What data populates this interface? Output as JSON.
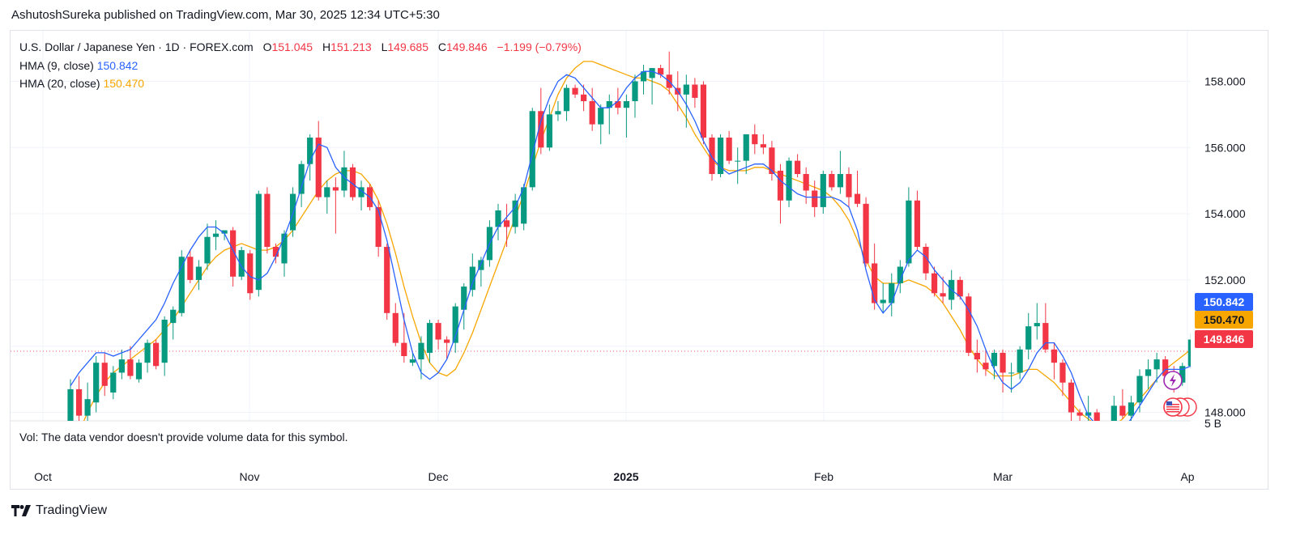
{
  "publisher_line": "AshutoshSureka published on TradingView.com, Mar 30, 2025 12:34 UTC+5:30",
  "legend": {
    "symbol": "U.S. Dollar / Japanese Yen · 1D · FOREX.com",
    "o_label": "O",
    "o_value": "151.045",
    "h_label": "H",
    "h_value": "151.213",
    "l_label": "L",
    "l_value": "149.685",
    "c_label": "C",
    "c_value": "149.846",
    "change": "−1.199 (−0.79%)",
    "hma9_label": "HMA (9, close)",
    "hma9_value": "150.842",
    "hma20_label": "HMA (20, close)",
    "hma20_value": "150.470"
  },
  "volume_note": "Vol: The data vendor doesn't provide volume data for this symbol.",
  "volume_axis_label": "5 B",
  "brand": "TradingView",
  "colors": {
    "up": "#089981",
    "down": "#f23645",
    "hma9": "#2962ff",
    "hma20": "#f7a600",
    "last_price": "#f23645"
  },
  "chart_data": {
    "type": "candlestick",
    "ylim": [
      147.4,
      159.0
    ],
    "y_ticks": [
      "158.000",
      "156.000",
      "154.000",
      "152.000",
      "148.000"
    ],
    "x_ticks": [
      "Oct",
      "Nov",
      "Dec",
      "2025",
      "Feb",
      "Mar",
      "Ap"
    ],
    "price_tags": [
      {
        "label": "150.842",
        "value": 150.842,
        "color": "#2962ff"
      },
      {
        "label": "150.470",
        "value": 150.47,
        "color": "#f7a600"
      },
      {
        "label": "149.846",
        "value": 149.846,
        "color": "#f23645"
      }
    ],
    "candles": [
      {
        "o": 146.5,
        "h": 149.0,
        "l": 146.2,
        "c": 148.7
      },
      {
        "o": 148.7,
        "h": 149.1,
        "l": 147.6,
        "c": 147.9
      },
      {
        "o": 147.9,
        "h": 148.9,
        "l": 147.5,
        "c": 148.4
      },
      {
        "o": 148.3,
        "h": 149.7,
        "l": 148.0,
        "c": 149.5
      },
      {
        "o": 149.5,
        "h": 149.8,
        "l": 148.5,
        "c": 148.8
      },
      {
        "o": 148.6,
        "h": 149.4,
        "l": 148.4,
        "c": 149.2
      },
      {
        "o": 149.2,
        "h": 149.9,
        "l": 149.0,
        "c": 149.6
      },
      {
        "o": 149.6,
        "h": 150.0,
        "l": 149.0,
        "c": 149.1
      },
      {
        "o": 149.0,
        "h": 149.6,
        "l": 148.9,
        "c": 149.5
      },
      {
        "o": 149.5,
        "h": 150.2,
        "l": 149.2,
        "c": 150.1
      },
      {
        "o": 150.1,
        "h": 150.2,
        "l": 149.3,
        "c": 149.4
      },
      {
        "o": 149.5,
        "h": 150.9,
        "l": 149.1,
        "c": 150.8
      },
      {
        "o": 150.7,
        "h": 151.2,
        "l": 150.2,
        "c": 151.1
      },
      {
        "o": 151.0,
        "h": 152.9,
        "l": 150.9,
        "c": 152.7
      },
      {
        "o": 152.7,
        "h": 152.9,
        "l": 151.9,
        "c": 152.0
      },
      {
        "o": 152.0,
        "h": 152.6,
        "l": 151.7,
        "c": 152.4
      },
      {
        "o": 152.5,
        "h": 153.7,
        "l": 152.3,
        "c": 153.3
      },
      {
        "o": 153.3,
        "h": 153.8,
        "l": 152.9,
        "c": 153.4
      },
      {
        "o": 153.4,
        "h": 153.5,
        "l": 153.2,
        "c": 153.5
      },
      {
        "o": 153.5,
        "h": 153.6,
        "l": 151.8,
        "c": 152.1
      },
      {
        "o": 152.1,
        "h": 153.0,
        "l": 152.0,
        "c": 152.9
      },
      {
        "o": 152.8,
        "h": 152.9,
        "l": 151.4,
        "c": 151.6
      },
      {
        "o": 151.7,
        "h": 154.7,
        "l": 151.5,
        "c": 154.6
      },
      {
        "o": 154.6,
        "h": 154.8,
        "l": 152.8,
        "c": 153.0
      },
      {
        "o": 153.0,
        "h": 153.1,
        "l": 152.5,
        "c": 152.7
      },
      {
        "o": 152.5,
        "h": 153.5,
        "l": 152.1,
        "c": 153.4
      },
      {
        "o": 153.5,
        "h": 154.8,
        "l": 153.3,
        "c": 154.6
      },
      {
        "o": 154.6,
        "h": 155.6,
        "l": 154.2,
        "c": 155.5
      },
      {
        "o": 155.5,
        "h": 156.4,
        "l": 155.0,
        "c": 156.3
      },
      {
        "o": 156.3,
        "h": 156.8,
        "l": 154.4,
        "c": 154.5
      },
      {
        "o": 154.5,
        "h": 155.0,
        "l": 154.0,
        "c": 154.8
      },
      {
        "o": 154.8,
        "h": 155.1,
        "l": 153.4,
        "c": 154.7
      },
      {
        "o": 154.7,
        "h": 155.9,
        "l": 154.5,
        "c": 155.4
      },
      {
        "o": 155.4,
        "h": 155.5,
        "l": 154.4,
        "c": 154.5
      },
      {
        "o": 154.5,
        "h": 155.0,
        "l": 154.1,
        "c": 154.8
      },
      {
        "o": 154.8,
        "h": 154.9,
        "l": 154.1,
        "c": 154.2
      },
      {
        "o": 154.2,
        "h": 154.4,
        "l": 152.7,
        "c": 153.0
      },
      {
        "o": 153.0,
        "h": 153.1,
        "l": 150.8,
        "c": 151.0
      },
      {
        "o": 151.0,
        "h": 151.3,
        "l": 150.0,
        "c": 150.1
      },
      {
        "o": 150.1,
        "h": 151.0,
        "l": 149.5,
        "c": 149.7
      },
      {
        "o": 149.5,
        "h": 149.8,
        "l": 149.4,
        "c": 149.6
      },
      {
        "o": 149.6,
        "h": 150.3,
        "l": 149.0,
        "c": 150.1
      },
      {
        "o": 149.8,
        "h": 150.8,
        "l": 149.5,
        "c": 150.7
      },
      {
        "o": 150.7,
        "h": 150.8,
        "l": 149.9,
        "c": 150.2
      },
      {
        "o": 150.2,
        "h": 150.3,
        "l": 149.6,
        "c": 150.1
      },
      {
        "o": 150.1,
        "h": 151.3,
        "l": 149.8,
        "c": 151.2
      },
      {
        "o": 151.1,
        "h": 151.9,
        "l": 150.5,
        "c": 151.8
      },
      {
        "o": 151.7,
        "h": 152.8,
        "l": 151.5,
        "c": 152.4
      },
      {
        "o": 152.3,
        "h": 152.7,
        "l": 151.8,
        "c": 152.6
      },
      {
        "o": 152.6,
        "h": 153.8,
        "l": 152.4,
        "c": 153.6
      },
      {
        "o": 153.6,
        "h": 154.3,
        "l": 153.2,
        "c": 154.1
      },
      {
        "o": 153.8,
        "h": 154.3,
        "l": 153.0,
        "c": 153.6
      },
      {
        "o": 153.6,
        "h": 154.6,
        "l": 153.4,
        "c": 154.4
      },
      {
        "o": 153.7,
        "h": 154.9,
        "l": 153.5,
        "c": 154.8
      },
      {
        "o": 154.8,
        "h": 157.2,
        "l": 154.7,
        "c": 157.1
      },
      {
        "o": 157.1,
        "h": 157.8,
        "l": 155.8,
        "c": 156.0
      },
      {
        "o": 156.0,
        "h": 157.3,
        "l": 155.9,
        "c": 157.0
      },
      {
        "o": 157.0,
        "h": 157.4,
        "l": 156.8,
        "c": 157.1
      },
      {
        "o": 157.1,
        "h": 157.9,
        "l": 156.8,
        "c": 157.8
      },
      {
        "o": 157.8,
        "h": 157.9,
        "l": 157.5,
        "c": 157.6
      },
      {
        "o": 157.6,
        "h": 157.9,
        "l": 157.1,
        "c": 157.4
      },
      {
        "o": 157.4,
        "h": 157.8,
        "l": 156.5,
        "c": 156.7
      },
      {
        "o": 156.7,
        "h": 157.3,
        "l": 156.1,
        "c": 157.2
      },
      {
        "o": 157.2,
        "h": 157.6,
        "l": 156.4,
        "c": 157.4
      },
      {
        "o": 157.4,
        "h": 157.8,
        "l": 157.0,
        "c": 157.2
      },
      {
        "o": 157.2,
        "h": 157.6,
        "l": 156.3,
        "c": 157.4
      },
      {
        "o": 157.4,
        "h": 158.2,
        "l": 156.9,
        "c": 158.0
      },
      {
        "o": 158.0,
        "h": 158.5,
        "l": 157.6,
        "c": 158.3
      },
      {
        "o": 158.1,
        "h": 158.4,
        "l": 157.3,
        "c": 158.4
      },
      {
        "o": 158.4,
        "h": 158.5,
        "l": 158.1,
        "c": 158.2
      },
      {
        "o": 158.2,
        "h": 158.9,
        "l": 157.6,
        "c": 157.8
      },
      {
        "o": 157.8,
        "h": 158.3,
        "l": 157.1,
        "c": 157.6
      },
      {
        "o": 157.6,
        "h": 158.2,
        "l": 156.6,
        "c": 157.9
      },
      {
        "o": 157.9,
        "h": 158.1,
        "l": 157.2,
        "c": 157.5
      },
      {
        "o": 157.9,
        "h": 158.0,
        "l": 156.1,
        "c": 156.3
      },
      {
        "o": 156.3,
        "h": 156.4,
        "l": 155.0,
        "c": 155.2
      },
      {
        "o": 155.2,
        "h": 156.4,
        "l": 155.1,
        "c": 156.3
      },
      {
        "o": 156.3,
        "h": 156.5,
        "l": 155.5,
        "c": 155.6
      },
      {
        "o": 155.6,
        "h": 156.0,
        "l": 154.9,
        "c": 155.6
      },
      {
        "o": 155.6,
        "h": 156.4,
        "l": 155.2,
        "c": 156.4
      },
      {
        "o": 156.4,
        "h": 156.7,
        "l": 155.8,
        "c": 156.1
      },
      {
        "o": 156.1,
        "h": 156.4,
        "l": 155.8,
        "c": 156.0
      },
      {
        "o": 156.0,
        "h": 156.2,
        "l": 155.0,
        "c": 155.2
      },
      {
        "o": 155.3,
        "h": 155.5,
        "l": 153.7,
        "c": 154.4
      },
      {
        "o": 154.4,
        "h": 155.7,
        "l": 154.2,
        "c": 155.6
      },
      {
        "o": 155.6,
        "h": 155.8,
        "l": 155.1,
        "c": 155.2
      },
      {
        "o": 155.2,
        "h": 155.4,
        "l": 154.3,
        "c": 154.7
      },
      {
        "o": 154.7,
        "h": 155.0,
        "l": 153.9,
        "c": 154.2
      },
      {
        "o": 154.2,
        "h": 155.3,
        "l": 154.0,
        "c": 155.2
      },
      {
        "o": 155.2,
        "h": 155.3,
        "l": 154.7,
        "c": 154.8
      },
      {
        "o": 154.8,
        "h": 155.9,
        "l": 154.6,
        "c": 155.2
      },
      {
        "o": 155.2,
        "h": 155.4,
        "l": 154.2,
        "c": 154.5
      },
      {
        "o": 154.6,
        "h": 155.3,
        "l": 154.2,
        "c": 154.3
      },
      {
        "o": 154.3,
        "h": 154.5,
        "l": 152.4,
        "c": 152.5
      },
      {
        "o": 152.5,
        "h": 153.1,
        "l": 151.1,
        "c": 151.3
      },
      {
        "o": 151.3,
        "h": 151.9,
        "l": 151.0,
        "c": 151.4
      },
      {
        "o": 151.3,
        "h": 152.2,
        "l": 150.9,
        "c": 151.9
      },
      {
        "o": 151.9,
        "h": 152.6,
        "l": 151.6,
        "c": 152.4
      },
      {
        "o": 152.5,
        "h": 154.8,
        "l": 152.4,
        "c": 154.4
      },
      {
        "o": 154.4,
        "h": 154.7,
        "l": 152.9,
        "c": 153.0
      },
      {
        "o": 153.0,
        "h": 153.1,
        "l": 152.0,
        "c": 152.2
      },
      {
        "o": 152.2,
        "h": 152.4,
        "l": 151.5,
        "c": 151.6
      },
      {
        "o": 151.6,
        "h": 152.1,
        "l": 151.3,
        "c": 151.5
      },
      {
        "o": 151.4,
        "h": 152.3,
        "l": 151.1,
        "c": 152.0
      },
      {
        "o": 152.0,
        "h": 152.1,
        "l": 151.4,
        "c": 151.5
      },
      {
        "o": 151.5,
        "h": 151.6,
        "l": 149.7,
        "c": 149.8
      },
      {
        "o": 149.8,
        "h": 150.2,
        "l": 149.2,
        "c": 149.6
      },
      {
        "o": 149.5,
        "h": 149.9,
        "l": 149.1,
        "c": 149.3
      },
      {
        "o": 149.4,
        "h": 149.9,
        "l": 149.0,
        "c": 149.8
      },
      {
        "o": 149.8,
        "h": 149.9,
        "l": 148.6,
        "c": 149.2
      },
      {
        "o": 149.2,
        "h": 149.5,
        "l": 148.6,
        "c": 149.2
      },
      {
        "o": 149.2,
        "h": 150.0,
        "l": 149.0,
        "c": 149.9
      },
      {
        "o": 149.9,
        "h": 151.0,
        "l": 149.6,
        "c": 150.6
      },
      {
        "o": 150.6,
        "h": 151.3,
        "l": 150.2,
        "c": 150.7
      },
      {
        "o": 150.7,
        "h": 151.3,
        "l": 149.8,
        "c": 149.9
      },
      {
        "o": 149.9,
        "h": 150.1,
        "l": 149.0,
        "c": 149.5
      },
      {
        "o": 149.5,
        "h": 149.6,
        "l": 148.5,
        "c": 148.9
      },
      {
        "o": 148.9,
        "h": 149.0,
        "l": 147.7,
        "c": 148.0
      },
      {
        "o": 148.0,
        "h": 148.1,
        "l": 147.2,
        "c": 147.9
      },
      {
        "o": 147.9,
        "h": 148.5,
        "l": 147.3,
        "c": 148.0
      },
      {
        "o": 148.0,
        "h": 148.1,
        "l": 147.1,
        "c": 147.3
      },
      {
        "o": 147.3,
        "h": 147.5,
        "l": 146.6,
        "c": 147.0
      },
      {
        "o": 147.0,
        "h": 148.5,
        "l": 146.8,
        "c": 148.2
      },
      {
        "o": 148.2,
        "h": 148.7,
        "l": 147.8,
        "c": 147.9
      },
      {
        "o": 147.9,
        "h": 148.5,
        "l": 147.6,
        "c": 148.3
      },
      {
        "o": 148.3,
        "h": 149.3,
        "l": 148.0,
        "c": 149.1
      },
      {
        "o": 149.1,
        "h": 149.6,
        "l": 148.7,
        "c": 149.3
      },
      {
        "o": 149.3,
        "h": 149.8,
        "l": 148.9,
        "c": 149.6
      },
      {
        "o": 149.6,
        "h": 149.7,
        "l": 149.0,
        "c": 149.1
      },
      {
        "o": 149.1,
        "h": 149.4,
        "l": 148.6,
        "c": 148.9
      },
      {
        "o": 148.9,
        "h": 149.5,
        "l": 148.8,
        "c": 149.4
      },
      {
        "o": 149.4,
        "h": 150.4,
        "l": 149.3,
        "c": 150.2
      },
      {
        "o": 149.8,
        "h": 151.0,
        "l": 149.6,
        "c": 150.7
      },
      {
        "o": 150.7,
        "h": 151.0,
        "l": 150.0,
        "c": 150.1
      },
      {
        "o": 150.1,
        "h": 150.9,
        "l": 149.9,
        "c": 150.8
      },
      {
        "o": 150.8,
        "h": 151.3,
        "l": 150.3,
        "c": 151.0
      },
      {
        "o": 151.045,
        "h": 151.213,
        "l": 149.685,
        "c": 149.846
      }
    ],
    "hma9": [
      148.8,
      149.2,
      149.5,
      149.8,
      149.8,
      149.7,
      149.8,
      149.9,
      150.2,
      150.5,
      150.8,
      151.3,
      151.9,
      152.4,
      152.9,
      153.3,
      153.6,
      153.6,
      153.4,
      152.9,
      152.4,
      152.1,
      152.0,
      152.2,
      152.7,
      153.3,
      154.0,
      154.8,
      155.6,
      156.1,
      156.0,
      155.4,
      155.1,
      154.9,
      154.7,
      154.5,
      154.1,
      153.2,
      152.0,
      150.8,
      149.8,
      149.2,
      149.0,
      149.2,
      149.6,
      150.3,
      151.1,
      151.9,
      152.5,
      153.1,
      153.6,
      153.9,
      154.2,
      154.8,
      155.8,
      156.8,
      157.5,
      158.0,
      158.2,
      158.1,
      157.8,
      157.5,
      157.2,
      157.2,
      157.4,
      157.8,
      158.1,
      158.3,
      158.3,
      158.2,
      158.0,
      157.7,
      157.3,
      156.8,
      156.2,
      155.7,
      155.4,
      155.2,
      155.3,
      155.4,
      155.5,
      155.5,
      155.3,
      155.0,
      154.8,
      154.6,
      154.5,
      154.5,
      154.5,
      154.5,
      154.4,
      154.2,
      153.5,
      152.3,
      151.4,
      151.0,
      151.3,
      152.0,
      152.6,
      152.9,
      152.7,
      152.3,
      152.0,
      151.7,
      151.5,
      151.1,
      150.6,
      149.9,
      149.3,
      148.9,
      148.7,
      148.9,
      149.3,
      149.8,
      150.1,
      150.1,
      149.7,
      149.2,
      148.5,
      147.9,
      147.6,
      147.4,
      147.3,
      147.5,
      147.8,
      148.2,
      148.6,
      149.0,
      149.3,
      149.3,
      149.3,
      149.4,
      149.7,
      150.1,
      150.4,
      150.7,
      150.842
    ],
    "hma20": [
      146.8,
      147.4,
      148.0,
      148.5,
      148.9,
      149.2,
      149.4,
      149.6,
      149.8,
      150.0,
      150.2,
      150.5,
      150.8,
      151.2,
      151.6,
      152.0,
      152.4,
      152.7,
      152.9,
      153.0,
      153.1,
      153.0,
      152.9,
      152.9,
      153.0,
      153.2,
      153.5,
      153.9,
      154.3,
      154.7,
      155.0,
      155.2,
      155.3,
      155.3,
      155.2,
      154.9,
      154.4,
      153.7,
      152.8,
      151.8,
      150.9,
      150.1,
      149.5,
      149.2,
      149.1,
      149.3,
      149.8,
      150.4,
      151.1,
      151.8,
      152.5,
      153.2,
      153.9,
      154.6,
      155.4,
      156.2,
      156.9,
      157.6,
      158.1,
      158.4,
      158.6,
      158.6,
      158.5,
      158.4,
      158.3,
      158.2,
      158.1,
      158.1,
      158.0,
      157.9,
      157.7,
      157.3,
      156.9,
      156.4,
      156.0,
      155.6,
      155.4,
      155.3,
      155.3,
      155.3,
      155.4,
      155.4,
      155.3,
      155.2,
      155.1,
      155.0,
      154.9,
      154.8,
      154.7,
      154.5,
      154.2,
      153.8,
      153.2,
      152.6,
      152.1,
      151.9,
      151.9,
      151.9,
      152.0,
      151.9,
      151.8,
      151.6,
      151.3,
      150.9,
      150.5,
      150.0,
      149.6,
      149.3,
      149.1,
      149.1,
      149.1,
      149.2,
      149.3,
      149.3,
      149.1,
      148.9,
      148.6,
      148.3,
      148.0,
      147.8,
      147.6,
      147.5,
      147.6,
      147.8,
      148.1,
      148.4,
      148.7,
      149.0,
      149.3,
      149.5,
      149.7,
      149.9,
      150.1,
      150.3,
      150.47
    ]
  }
}
